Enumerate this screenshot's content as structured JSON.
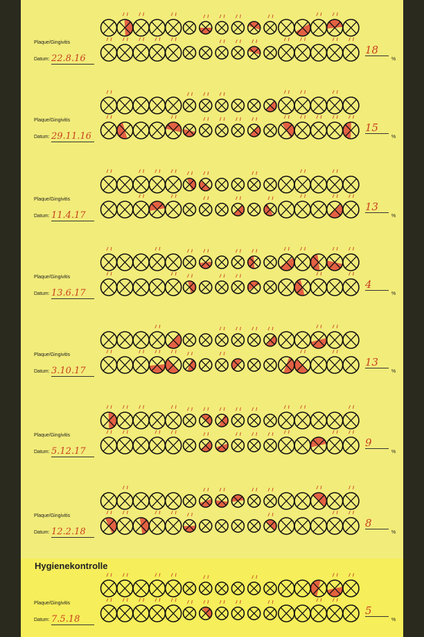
{
  "header": {
    "title": "Hygienekontrolle"
  },
  "sections": [
    {
      "label": "Plaque/Gingivitis",
      "date_label": "Datum:",
      "date": "22.8.16",
      "percent": 18,
      "percent_unit": "%"
    },
    {
      "label": "Plaque/Gingivitis",
      "date_label": "Datum:",
      "date": "29.11.16",
      "percent": 15,
      "percent_unit": "%"
    },
    {
      "label": "Plaque/Gingivitis",
      "date_label": "Datum:",
      "date": "11.4.17",
      "percent": 13,
      "percent_unit": "%"
    },
    {
      "label": "Plaque/Gingivitis",
      "date_label": "Datum:",
      "date": "13.6.17",
      "percent": 4,
      "percent_unit": "%"
    },
    {
      "label": "Plaque/Gingivitis",
      "date_label": "Datum:",
      "date": "3.10.17",
      "percent": 13,
      "percent_unit": "%"
    },
    {
      "label": "Plaque/Gingivitis",
      "date_label": "Datum:",
      "date": "5.12.17",
      "percent": 9,
      "percent_unit": "%"
    },
    {
      "label": "Plaque/Gingivitis",
      "date_label": "Datum:",
      "date": "12.2.18",
      "percent": 8,
      "percent_unit": "%"
    },
    {
      "label": "Plaque/Gingivitis",
      "date_label": "Datum:",
      "date": "7.5.18",
      "percent": 5,
      "percent_unit": "%"
    }
  ]
}
